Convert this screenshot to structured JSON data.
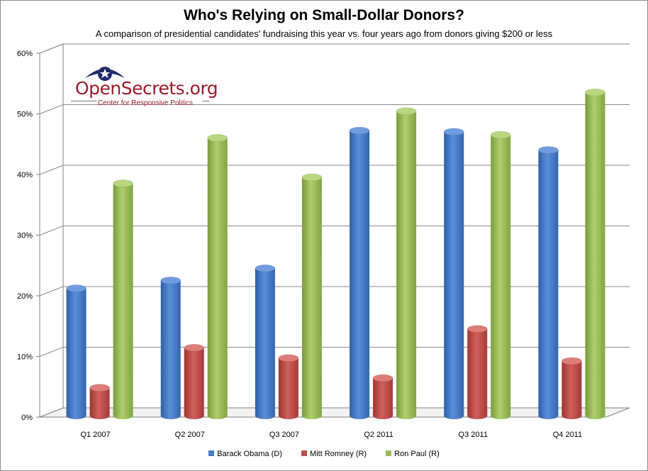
{
  "chart_data": {
    "type": "bar",
    "title": "Who's Relying on Small-Dollar Donors?",
    "subtitle": "A comparison of presidential candidates' fundraising this year vs. four years ago from donors giving $200  or less",
    "categories": [
      "Q1 2007",
      "Q2 2007",
      "Q3 2007",
      "Q2 2011",
      "Q3 2011",
      "Q4 2011"
    ],
    "series": [
      {
        "name": "Barack Obama  (D)",
        "color": "#4a7ec9",
        "values": [
          21,
          22.3,
          24.3,
          47,
          46.8,
          43.8
        ]
      },
      {
        "name": "Mitt Romney  (R)",
        "color": "#c0504d",
        "values": [
          4.6,
          11.2,
          9.5,
          6.2,
          14.3,
          9
        ]
      },
      {
        "name": "Ron Paul  (R)",
        "color": "#9bbb59",
        "values": [
          38.3,
          45.8,
          39.3,
          50.2,
          46.3,
          53.3
        ]
      }
    ],
    "ylim": [
      0,
      60
    ],
    "yticks": [
      "0%",
      "10%",
      "20%",
      "30%",
      "40%",
      "50%",
      "60%"
    ],
    "grid": true,
    "legend": "bottom"
  },
  "logo": {
    "name": "OpenSecrets.org",
    "tagline": "Center for Responsive Politics",
    "icon": "eye-star-icon"
  }
}
